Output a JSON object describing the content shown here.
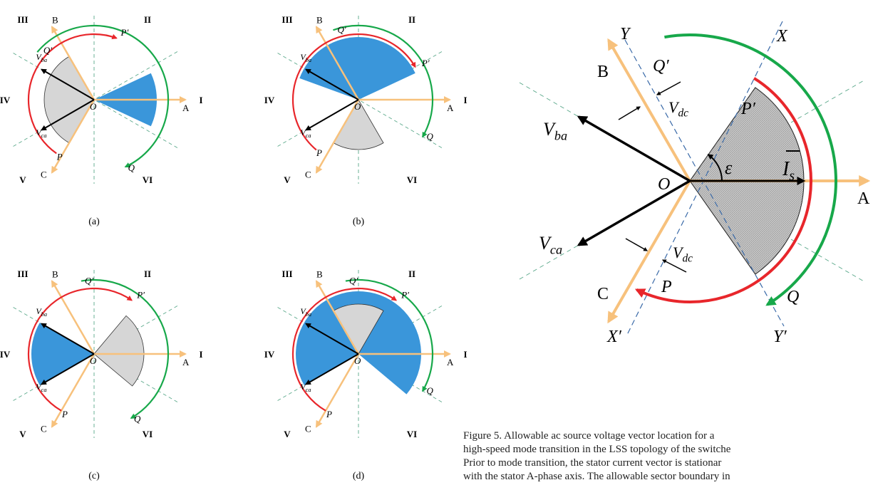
{
  "colors": {
    "axis": "#f7c17c",
    "vector": "#000000",
    "red_arc": "#e8262b",
    "green_arc": "#17a84a",
    "blue_sector": "#3a96da",
    "gray_sector": "#d6d6d6",
    "sector_divider": "#5aa88a",
    "xy_lines": "#3a6aa8"
  },
  "sector_labels": [
    "I",
    "II",
    "III",
    "IV",
    "V",
    "VI"
  ],
  "small_panels": [
    {
      "id": "a",
      "caption": "(a)",
      "gray": [
        120,
        240
      ],
      "blue": [
        -25,
        25
      ],
      "red_from": 235,
      "red_to": 70,
      "green_from": 140,
      "green_to": -65,
      "labels": {
        "A": "A",
        "B": "B",
        "C": "C",
        "O": "O",
        "Q1": "Q′",
        "P1": "P′",
        "P": "P",
        "Q": "Q",
        "Vba": "V",
        "Vba_sub": "ba",
        "Vca": "V",
        "Vca_sub": "ca"
      }
    },
    {
      "id": "b",
      "caption": "(b)",
      "gray": [
        240,
        300
      ],
      "blue": [
        25,
        160
      ],
      "red_from": 230,
      "red_to": 30,
      "green_from": 110,
      "green_to": -30,
      "labels": {
        "A": "A",
        "B": "B",
        "C": "C",
        "O": "O",
        "Q1": "Q′",
        "P1": "P′",
        "P": "P",
        "Q": "Q",
        "Vba": "V",
        "Vba_sub": "ba",
        "Vca": "V",
        "Vca_sub": "ca"
      }
    },
    {
      "id": "c",
      "caption": "(c)",
      "gray": [
        -40,
        50
      ],
      "blue": [
        150,
        210
      ],
      "red_from": 240,
      "red_to": 55,
      "green_from": 100,
      "green_to": -60,
      "labels": {
        "A": "A",
        "B": "B",
        "C": "C",
        "O": "O",
        "Q1": "Q′",
        "P1": "P′",
        "P": "P",
        "Q": "Q",
        "Vba": "V",
        "Vba_sub": "ba",
        "Vca": "V",
        "Vca_sub": "ca"
      }
    },
    {
      "id": "d",
      "caption": "(d)",
      "gray": [
        60,
        120
      ],
      "blue": [
        -40,
        210
      ],
      "red_from": 240,
      "red_to": 55,
      "green_from": 100,
      "green_to": -30,
      "labels": {
        "A": "A",
        "B": "B",
        "C": "C",
        "O": "O",
        "Q1": "Q′",
        "P1": "P′",
        "P": "P",
        "Q": "Q",
        "Vba": "V",
        "Vba_sub": "ba",
        "Vca": "V",
        "Vca_sub": "ca"
      }
    }
  ],
  "big_panel": {
    "gray": [
      -55,
      55
    ],
    "labels": {
      "A": "A",
      "B": "B",
      "C": "C",
      "O": "O",
      "X": "X",
      "Y": "Y",
      "X1": "X′",
      "Y1": "Y′",
      "Q1": "Q′",
      "P1": "P′",
      "P": "P",
      "Q": "Q",
      "Vba": "V",
      "Vba_sub": "ba",
      "Vca": "V",
      "Vca_sub": "ca",
      "Vdc": "V",
      "Vdc_sub": "dc",
      "eps": "ε",
      "Is": "I",
      "Is_sub": "s"
    }
  },
  "caption": [
    "Figure 5.  Allowable ac source voltage vector location for a",
    "high-speed mode transition in the LSS topology of the switche",
    "Prior to mode transition, the stator current vector is stationar",
    "with the stator A-phase axis. The allowable sector boundary in"
  ]
}
